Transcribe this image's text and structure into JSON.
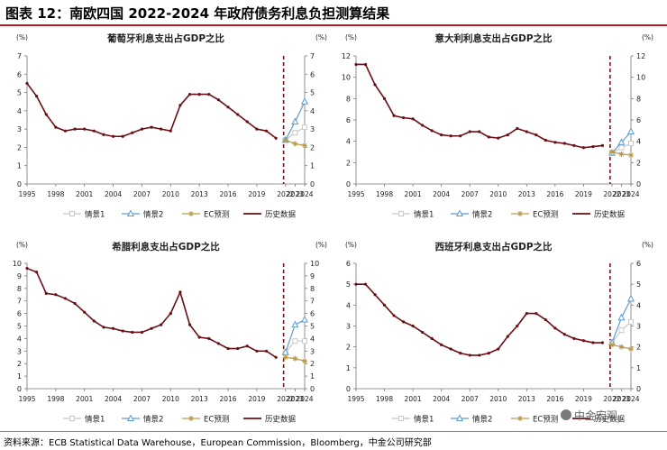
{
  "figure_title": "图表 12：南欧四国 2022-2024 年政府债务利息负担测算结果",
  "source": "资料来源：ECB Statistical Data Warehouse，European Commission，Bloomberg，中金公司研究部",
  "watermark": "中金宏观",
  "colors": {
    "history": "#6b0f16",
    "scenario1": "#c8c8c8",
    "scenario2": "#5b9bd5",
    "ec": "#b89a4a",
    "forecast_line": "#7a1216",
    "title_rule": "#b81c22"
  },
  "chart_data": [
    {
      "type": "line",
      "title": "葡萄牙利息支出占GDP之比",
      "ylabel_left": "(%)",
      "ylabel_right": "(%)",
      "ylim": [
        0,
        7
      ],
      "y_ticks": [
        0,
        1,
        2,
        3,
        4,
        5,
        6,
        7
      ],
      "x_ticks": [
        "1995",
        "1998",
        "2001",
        "2004",
        "2007",
        "2010",
        "2013",
        "2016",
        "2019",
        "2022",
        "2023",
        "2024"
      ],
      "legend": [
        "情景1",
        "情景2",
        "EC预测",
        "历史数据"
      ],
      "history": {
        "name": "历史数据",
        "x": [
          1995,
          1996,
          1997,
          1998,
          1999,
          2000,
          2001,
          2002,
          2003,
          2004,
          2005,
          2006,
          2007,
          2008,
          2009,
          2010,
          2011,
          2012,
          2013,
          2014,
          2015,
          2016,
          2017,
          2018,
          2019,
          2020,
          2021
        ],
        "values": [
          5.5,
          4.8,
          3.8,
          3.1,
          2.9,
          3.0,
          3.0,
          2.9,
          2.7,
          2.6,
          2.6,
          2.8,
          3.0,
          3.1,
          3.0,
          2.9,
          4.3,
          4.9,
          4.9,
          4.9,
          4.6,
          4.2,
          3.8,
          3.4,
          3.0,
          2.9,
          2.5
        ]
      },
      "scenarios": [
        {
          "name": "情景1",
          "x": [
            2022,
            2023,
            2024
          ],
          "values": [
            2.4,
            2.8,
            3.1
          ]
        },
        {
          "name": "情景2",
          "x": [
            2022,
            2023,
            2024
          ],
          "values": [
            2.4,
            3.4,
            4.5
          ]
        },
        {
          "name": "EC预测",
          "x": [
            2022,
            2023,
            2024
          ],
          "values": [
            2.4,
            2.2,
            2.1
          ]
        }
      ]
    },
    {
      "type": "line",
      "title": "意大利利息支出占GDP之比",
      "ylabel_left": "(%)",
      "ylabel_right": "(%)",
      "ylim": [
        0,
        12
      ],
      "y_ticks": [
        0,
        2,
        4,
        6,
        8,
        10,
        12
      ],
      "x_ticks": [
        "1995",
        "1998",
        "2001",
        "2004",
        "2007",
        "2010",
        "2013",
        "2016",
        "2019",
        "2022",
        "2023",
        "2024"
      ],
      "legend": [
        "情景1",
        "情景2",
        "EC预测",
        "历史数据"
      ],
      "history": {
        "name": "历史数据",
        "x": [
          1995,
          1996,
          1997,
          1998,
          1999,
          2000,
          2001,
          2002,
          2003,
          2004,
          2005,
          2006,
          2007,
          2008,
          2009,
          2010,
          2011,
          2012,
          2013,
          2014,
          2015,
          2016,
          2017,
          2018,
          2019,
          2020,
          2021
        ],
        "values": [
          11.2,
          11.2,
          9.3,
          8.0,
          6.4,
          6.2,
          6.1,
          5.5,
          5.0,
          4.6,
          4.5,
          4.5,
          4.9,
          4.9,
          4.4,
          4.3,
          4.6,
          5.2,
          4.9,
          4.6,
          4.1,
          3.9,
          3.8,
          3.6,
          3.4,
          3.5,
          3.6
        ]
      },
      "scenarios": [
        {
          "name": "情景1",
          "x": [
            2022,
            2023,
            2024
          ],
          "values": [
            2.9,
            3.4,
            3.8
          ]
        },
        {
          "name": "情景2",
          "x": [
            2022,
            2023,
            2024
          ],
          "values": [
            2.9,
            3.9,
            4.9
          ]
        },
        {
          "name": "EC预测",
          "x": [
            2022,
            2023,
            2024
          ],
          "values": [
            3.0,
            2.8,
            2.7
          ]
        }
      ]
    },
    {
      "type": "line",
      "title": "希腊利息支出占GDP之比",
      "ylabel_left": "(%)",
      "ylabel_right": "(%)",
      "ylim": [
        0,
        10
      ],
      "y_ticks": [
        0,
        1,
        2,
        3,
        4,
        5,
        6,
        7,
        8,
        9,
        10
      ],
      "x_ticks": [
        "1995",
        "1998",
        "2001",
        "2004",
        "2007",
        "2010",
        "2013",
        "2016",
        "2019",
        "2022",
        "2023",
        "2024"
      ],
      "legend": [
        "情景1",
        "情景2",
        "EC预测",
        "历史数据"
      ],
      "history": {
        "name": "历史数据",
        "x": [
          1995,
          1996,
          1997,
          1998,
          1999,
          2000,
          2001,
          2002,
          2003,
          2004,
          2005,
          2006,
          2007,
          2008,
          2009,
          2010,
          2011,
          2012,
          2013,
          2014,
          2015,
          2016,
          2017,
          2018,
          2019,
          2020,
          2021
        ],
        "values": [
          9.6,
          9.3,
          7.6,
          7.5,
          7.2,
          6.8,
          6.1,
          5.4,
          4.9,
          4.8,
          4.6,
          4.5,
          4.5,
          4.8,
          5.1,
          6.0,
          7.7,
          5.1,
          4.1,
          4.0,
          3.6,
          3.2,
          3.2,
          3.4,
          3.0,
          3.0,
          2.5
        ]
      },
      "scenarios": [
        {
          "name": "情景1",
          "x": [
            2022,
            2023,
            2024
          ],
          "values": [
            2.9,
            3.8,
            3.8
          ]
        },
        {
          "name": "情景2",
          "x": [
            2022,
            2023,
            2024
          ],
          "values": [
            2.9,
            5.1,
            5.5
          ]
        },
        {
          "name": "EC预测",
          "x": [
            2022,
            2023,
            2024
          ],
          "values": [
            2.5,
            2.4,
            2.2
          ]
        }
      ]
    },
    {
      "type": "line",
      "title": "西班牙利息支出占GDP之比",
      "ylabel_left": "(%)",
      "ylabel_right": "(%)",
      "ylim": [
        0,
        6
      ],
      "y_ticks": [
        0,
        1,
        2,
        3,
        4,
        5,
        6
      ],
      "x_ticks": [
        "1995",
        "1998",
        "2001",
        "2004",
        "2007",
        "2010",
        "2013",
        "2016",
        "2019",
        "2022",
        "2023",
        "2024"
      ],
      "legend": [
        "情景1",
        "情景2",
        "EC预测",
        "历史数据"
      ],
      "history": {
        "name": "历史数据",
        "x": [
          1995,
          1996,
          1997,
          1998,
          1999,
          2000,
          2001,
          2002,
          2003,
          2004,
          2005,
          2006,
          2007,
          2008,
          2009,
          2010,
          2011,
          2012,
          2013,
          2014,
          2015,
          2016,
          2017,
          2018,
          2019,
          2020,
          2021
        ],
        "values": [
          5.0,
          5.0,
          4.5,
          4.0,
          3.5,
          3.2,
          3.0,
          2.7,
          2.4,
          2.1,
          1.9,
          1.7,
          1.6,
          1.6,
          1.7,
          1.9,
          2.5,
          3.0,
          3.6,
          3.6,
          3.3,
          2.9,
          2.6,
          2.4,
          2.3,
          2.2,
          2.2
        ]
      },
      "scenarios": [
        {
          "name": "情景1",
          "x": [
            2022,
            2023,
            2024
          ],
          "values": [
            2.2,
            2.8,
            3.2
          ]
        },
        {
          "name": "情景2",
          "x": [
            2022,
            2023,
            2024
          ],
          "values": [
            2.2,
            3.4,
            4.3
          ]
        },
        {
          "name": "EC预测",
          "x": [
            2022,
            2023,
            2024
          ],
          "values": [
            2.1,
            2.0,
            1.9
          ]
        }
      ]
    }
  ]
}
